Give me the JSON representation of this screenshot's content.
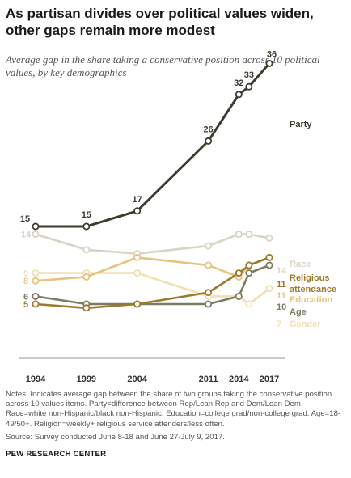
{
  "title": "As partisan divides over political values widen, other gaps remain more modest",
  "subtitle": "Average gap in the share taking a conservative position across 10 political values, by key demographics",
  "notes": "Notes: Indicates average gap between the share of two groups taking the conservative position across 10 values items. Party=difference between Rep/Lean Rep and Dem/Lean Dem. Race=white non-Hispanic/black non-Hispanic. Education=college grad/non-college grad. Age=18-49/50+. Religion=weekly+ religious service attenders/less often.",
  "source": "Source: Survey conducted June 8-18 and June 27-July 9, 2017.",
  "org": "PEW RESEARCH CENTER",
  "chart_data": {
    "type": "line",
    "x": [
      1994,
      1999,
      2004,
      2011,
      2014,
      2015,
      2017
    ],
    "x_tick_labels": [
      "1994",
      "1999",
      "2004",
      "2011",
      "2014",
      "2017"
    ],
    "ylim": [
      0,
      40
    ],
    "grid": false,
    "series": [
      {
        "name": "Party",
        "values": [
          15,
          15,
          17,
          26,
          32,
          33,
          36
        ],
        "color": "#3d3a2f",
        "labels": [
          "15",
          "15",
          "17",
          "26",
          "32",
          "33",
          "36"
        ]
      },
      {
        "name": "Race",
        "values": [
          14,
          12,
          11.5,
          12.5,
          14,
          14,
          13.5
        ],
        "color": "#d9d3c3",
        "labels": [
          "14",
          "",
          "",
          "",
          "",
          "",
          "14"
        ]
      },
      {
        "name": "Religious attendance",
        "values": [
          5,
          4.5,
          5,
          6.5,
          9,
          10,
          11
        ],
        "color": "#9b7a2c",
        "labels": [
          "5",
          "",
          "",
          "",
          "",
          "",
          "11"
        ]
      },
      {
        "name": "Education",
        "values": [
          8,
          8.5,
          11,
          10,
          8.5,
          10,
          11
        ],
        "color": "#e7c47f",
        "labels": [
          "8",
          "",
          "",
          "",
          "",
          "",
          "11"
        ]
      },
      {
        "name": "Age",
        "values": [
          6,
          5,
          5,
          5,
          6,
          9,
          10
        ],
        "color": "#7d7a62",
        "labels": [
          "6",
          "",
          "",
          "",
          "",
          "",
          "10"
        ]
      },
      {
        "name": "Gender",
        "values": [
          9,
          9,
          9,
          6,
          6,
          5,
          7
        ],
        "color": "#f2dfb3",
        "labels": [
          "9",
          "",
          "",
          "",
          "",
          "",
          "7"
        ]
      }
    ]
  }
}
